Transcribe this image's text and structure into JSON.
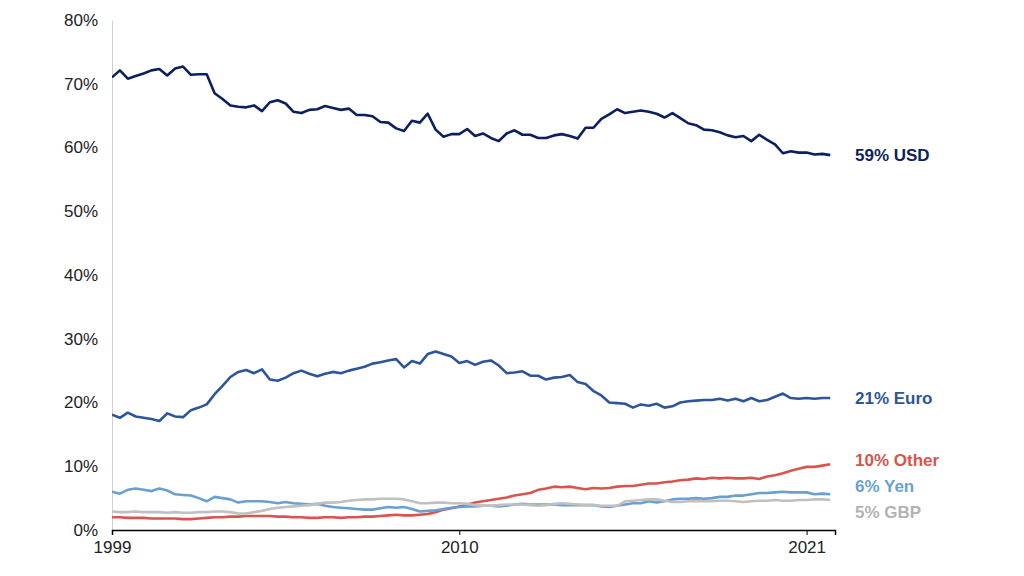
{
  "chart_data": {
    "type": "line",
    "x": [
      1999,
      1999.25,
      1999.5,
      1999.75,
      2000,
      2000.25,
      2000.5,
      2000.75,
      2001,
      2001.25,
      2001.5,
      2001.75,
      2002,
      2002.25,
      2002.5,
      2002.75,
      2003,
      2003.25,
      2003.5,
      2003.75,
      2004,
      2004.25,
      2004.5,
      2004.75,
      2005,
      2005.25,
      2005.5,
      2005.75,
      2006,
      2006.25,
      2006.5,
      2006.75,
      2007,
      2007.25,
      2007.5,
      2007.75,
      2008,
      2008.25,
      2008.5,
      2008.75,
      2009,
      2009.25,
      2009.5,
      2009.75,
      2010,
      2010.25,
      2010.5,
      2010.75,
      2011,
      2011.25,
      2011.5,
      2011.75,
      2012,
      2012.25,
      2012.5,
      2012.75,
      2013,
      2013.25,
      2013.5,
      2013.75,
      2014,
      2014.25,
      2014.5,
      2014.75,
      2015,
      2015.25,
      2015.5,
      2015.75,
      2016,
      2016.25,
      2016.5,
      2016.75,
      2017,
      2017.25,
      2017.5,
      2017.75,
      2018,
      2018.25,
      2018.5,
      2018.75,
      2019,
      2019.25,
      2019.5,
      2019.75,
      2020,
      2020.25,
      2020.5,
      2020.75,
      2021,
      2021.25,
      2021.5,
      2021.75
    ],
    "series": [
      {
        "name": "59% USD",
        "color": "#0d1f5c",
        "values": [
          71.0,
          72.1,
          70.8,
          71.2,
          71.6,
          72.1,
          72.3,
          71.3,
          72.4,
          72.7,
          71.4,
          71.5,
          71.5,
          68.5,
          67.6,
          66.6,
          66.4,
          66.3,
          66.6,
          65.7,
          67.1,
          67.4,
          66.9,
          65.6,
          65.4,
          65.9,
          66.0,
          66.5,
          66.2,
          65.9,
          66.1,
          65.1,
          65.1,
          64.9,
          64.0,
          63.9,
          63.0,
          62.6,
          64.2,
          63.9,
          65.3,
          62.8,
          61.7,
          62.1,
          62.1,
          62.9,
          61.8,
          62.2,
          61.5,
          61.0,
          62.2,
          62.7,
          62.0,
          62.0,
          61.5,
          61.5,
          61.9,
          62.1,
          61.8,
          61.4,
          63.1,
          63.1,
          64.5,
          65.2,
          66.0,
          65.4,
          65.6,
          65.8,
          65.6,
          65.3,
          64.7,
          65.4,
          64.6,
          63.8,
          63.5,
          62.8,
          62.7,
          62.4,
          61.9,
          61.6,
          61.8,
          61.0,
          62.0,
          61.2,
          60.5,
          59.1,
          59.4,
          59.2,
          59.2,
          58.9,
          59.0,
          58.8
        ]
      },
      {
        "name": "21% Euro",
        "color": "#2e5597",
        "values": [
          18.1,
          17.6,
          18.4,
          17.8,
          17.6,
          17.4,
          17.1,
          18.3,
          17.8,
          17.7,
          18.8,
          19.2,
          19.7,
          21.3,
          22.6,
          24.0,
          24.8,
          25.1,
          24.6,
          25.2,
          23.6,
          23.4,
          23.9,
          24.6,
          25.0,
          24.5,
          24.1,
          24.5,
          24.8,
          24.6,
          25.0,
          25.3,
          25.6,
          26.1,
          26.3,
          26.6,
          26.8,
          25.5,
          26.5,
          26.1,
          27.6,
          28.0,
          27.6,
          27.2,
          26.2,
          26.5,
          25.9,
          26.4,
          26.6,
          25.8,
          24.6,
          24.7,
          24.9,
          24.2,
          24.2,
          23.6,
          23.9,
          24.0,
          24.3,
          23.2,
          22.9,
          21.8,
          21.1,
          20.0,
          19.9,
          19.8,
          19.2,
          19.7,
          19.5,
          19.8,
          19.2,
          19.4,
          20.0,
          20.2,
          20.3,
          20.4,
          20.4,
          20.6,
          20.3,
          20.6,
          20.2,
          20.7,
          20.2,
          20.4,
          20.9,
          21.4,
          20.7,
          20.6,
          20.7,
          20.6,
          20.7,
          20.7
        ]
      },
      {
        "name": "10% Other",
        "color": "#d9544d",
        "values": [
          2.0,
          2.0,
          1.9,
          1.9,
          1.9,
          1.8,
          1.8,
          1.8,
          1.8,
          1.7,
          1.7,
          1.8,
          1.9,
          2.0,
          2.0,
          2.1,
          2.1,
          2.2,
          2.2,
          2.2,
          2.2,
          2.1,
          2.1,
          2.0,
          2.0,
          1.9,
          1.9,
          2.0,
          2.0,
          1.9,
          2.0,
          2.0,
          2.1,
          2.1,
          2.2,
          2.3,
          2.4,
          2.3,
          2.3,
          2.4,
          2.5,
          2.8,
          3.2,
          3.4,
          3.7,
          4.0,
          4.3,
          4.5,
          4.7,
          4.9,
          5.1,
          5.4,
          5.6,
          5.8,
          6.3,
          6.5,
          6.8,
          6.7,
          6.8,
          6.6,
          6.4,
          6.6,
          6.5,
          6.6,
          6.8,
          6.9,
          6.9,
          7.1,
          7.3,
          7.3,
          7.5,
          7.6,
          7.8,
          7.9,
          8.1,
          8.0,
          8.2,
          8.1,
          8.2,
          8.1,
          8.1,
          8.2,
          8.0,
          8.4,
          8.6,
          8.9,
          9.3,
          9.6,
          9.9,
          9.9,
          10.1,
          10.3
        ]
      },
      {
        "name": "6% Yen",
        "color": "#6a9fd1",
        "values": [
          6.0,
          5.7,
          6.3,
          6.5,
          6.3,
          6.1,
          6.5,
          6.2,
          5.6,
          5.5,
          5.4,
          5.0,
          4.5,
          5.2,
          5.0,
          4.8,
          4.3,
          4.5,
          4.5,
          4.5,
          4.4,
          4.2,
          4.4,
          4.2,
          4.1,
          4.0,
          4.1,
          3.8,
          3.6,
          3.5,
          3.4,
          3.3,
          3.2,
          3.2,
          3.4,
          3.6,
          3.5,
          3.6,
          3.3,
          2.9,
          3.0,
          3.1,
          3.3,
          3.5,
          3.6,
          3.7,
          3.7,
          3.8,
          3.8,
          3.7,
          3.8,
          4.0,
          4.1,
          4.0,
          4.0,
          4.0,
          4.0,
          3.9,
          3.9,
          3.9,
          3.9,
          3.9,
          3.7,
          3.6,
          3.8,
          4.0,
          4.2,
          4.2,
          4.5,
          4.3,
          4.5,
          4.8,
          4.9,
          4.9,
          5.0,
          4.9,
          5.0,
          5.2,
          5.2,
          5.4,
          5.4,
          5.6,
          5.8,
          5.8,
          5.9,
          6.0,
          5.9,
          5.9,
          5.9,
          5.6,
          5.7,
          5.6
        ]
      },
      {
        "name": "5% GBP",
        "color": "#c0c0c0",
        "values": [
          2.9,
          2.8,
          2.8,
          2.9,
          2.8,
          2.8,
          2.8,
          2.7,
          2.8,
          2.7,
          2.7,
          2.8,
          2.8,
          2.9,
          2.9,
          2.8,
          2.6,
          2.6,
          2.8,
          3.0,
          3.3,
          3.5,
          3.6,
          3.7,
          3.8,
          3.9,
          4.1,
          4.3,
          4.3,
          4.4,
          4.6,
          4.7,
          4.8,
          4.8,
          4.9,
          4.9,
          4.9,
          4.8,
          4.5,
          4.2,
          4.2,
          4.3,
          4.3,
          4.2,
          4.2,
          4.1,
          3.9,
          3.8,
          3.8,
          3.9,
          4.0,
          4.0,
          4.0,
          3.9,
          3.8,
          3.9,
          4.1,
          4.2,
          4.1,
          4.0,
          3.9,
          3.9,
          3.8,
          3.8,
          3.8,
          4.5,
          4.6,
          4.7,
          4.8,
          4.8,
          4.6,
          4.4,
          4.4,
          4.5,
          4.5,
          4.5,
          4.5,
          4.6,
          4.6,
          4.5,
          4.4,
          4.5,
          4.6,
          4.6,
          4.7,
          4.6,
          4.6,
          4.7,
          4.7,
          4.8,
          4.8,
          4.7
        ]
      }
    ],
    "xlim": [
      1999,
      2021.9
    ],
    "xticks": [
      1999,
      2010,
      2021
    ],
    "ylim": [
      0,
      80
    ],
    "yticks": [
      {
        "value": 0,
        "label": "0%"
      },
      {
        "value": 10,
        "label": "10%"
      },
      {
        "value": 20,
        "label": "20%"
      },
      {
        "value": 30,
        "label": "30%"
      },
      {
        "value": 40,
        "label": "40%"
      },
      {
        "value": 50,
        "label": "50%"
      },
      {
        "value": 60,
        "label": "60%"
      },
      {
        "value": 70,
        "label": "70%"
      },
      {
        "value": 80,
        "label": "80%"
      }
    ],
    "grid": false
  }
}
